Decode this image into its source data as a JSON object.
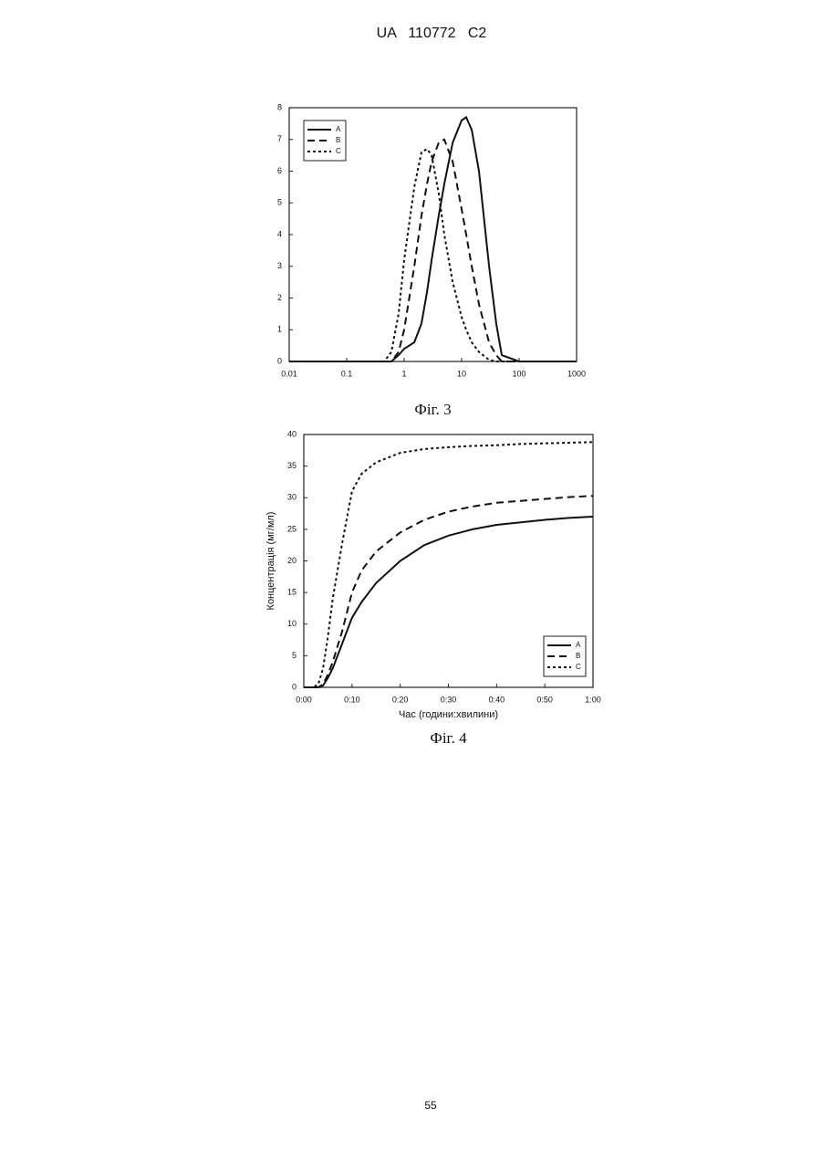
{
  "header": "UA   110772   C2",
  "page_number": "55",
  "chart_data": [
    {
      "type": "line",
      "caption": "Фіг. 3",
      "xscale": "log",
      "legend": "upper left",
      "xlim": [
        0.01,
        1000
      ],
      "xticks": [
        0.01,
        0.1,
        1,
        10,
        100,
        1000
      ],
      "ylim": [
        0,
        8
      ],
      "yticks": [
        0,
        1,
        2,
        3,
        4,
        5,
        6,
        7,
        8
      ],
      "x": [
        0.01,
        0.45,
        0.6,
        0.8,
        1,
        1.5,
        2,
        2.5,
        3,
        4,
        5,
        7,
        10,
        12,
        15,
        20,
        30,
        40,
        50,
        100,
        1000
      ],
      "series": [
        {
          "name": "A",
          "color": "#111111",
          "dash": "solid",
          "values": [
            0,
            0,
            0,
            0.2,
            0.4,
            0.6,
            1.2,
            2.2,
            3.2,
            4.6,
            5.6,
            6.9,
            7.6,
            7.7,
            7.3,
            6.0,
            3.0,
            1.2,
            0.2,
            0,
            0
          ]
        },
        {
          "name": "B",
          "color": "#111111",
          "dash": "dashed",
          "values": [
            0,
            0,
            0,
            0.3,
            1.0,
            3.0,
            4.6,
            5.6,
            6.3,
            6.9,
            7.0,
            6.3,
            4.8,
            4.0,
            3.0,
            1.8,
            0.6,
            0.2,
            0,
            0,
            0
          ]
        },
        {
          "name": "C",
          "color": "#111111",
          "dash": "dotted",
          "values": [
            0,
            0,
            0.3,
            1.5,
            3.2,
            5.5,
            6.6,
            6.7,
            6.5,
            5.3,
            4.0,
            2.5,
            1.4,
            1.0,
            0.6,
            0.3,
            0.05,
            0,
            0,
            0,
            0
          ]
        }
      ]
    },
    {
      "type": "line",
      "caption": "Фіг. 4",
      "legend": "lower right",
      "xlabel": "Час (години:хвилини)",
      "ylabel": "Концентрація (мг/мл)",
      "xlim": [
        0,
        60
      ],
      "xticks": [
        {
          "value": 0,
          "label": "0:00"
        },
        {
          "value": 10,
          "label": "0:10"
        },
        {
          "value": 20,
          "label": "0:20"
        },
        {
          "value": 30,
          "label": "0:30"
        },
        {
          "value": 40,
          "label": "0:40"
        },
        {
          "value": 50,
          "label": "0:50"
        },
        {
          "value": 60,
          "label": "1:00"
        }
      ],
      "ylim": [
        0,
        40
      ],
      "yticks": [
        0,
        5,
        10,
        15,
        20,
        25,
        30,
        35,
        40
      ],
      "x": [
        0,
        2,
        3,
        4,
        5,
        6,
        8,
        10,
        12,
        15,
        20,
        25,
        30,
        35,
        40,
        45,
        50,
        55,
        60
      ],
      "series": [
        {
          "name": "A",
          "color": "#111111",
          "dash": "solid",
          "values": [
            0,
            0,
            0,
            0.3,
            1.5,
            3,
            7,
            11,
            13.5,
            16.5,
            20,
            22.5,
            24,
            25,
            25.7,
            26.1,
            26.5,
            26.8,
            27
          ]
        },
        {
          "name": "B",
          "color": "#111111",
          "dash": "dashed",
          "values": [
            0,
            0,
            0,
            0.5,
            2,
            4,
            9,
            15,
            18.5,
            21.5,
            24.5,
            26.5,
            27.8,
            28.6,
            29.2,
            29.5,
            29.8,
            30.1,
            30.3
          ]
        },
        {
          "name": "C",
          "color": "#111111",
          "dash": "dotted",
          "values": [
            0,
            0,
            0.5,
            3,
            8,
            14,
            23,
            31,
            33.8,
            35.6,
            37.1,
            37.7,
            38.0,
            38.2,
            38.3,
            38.5,
            38.6,
            38.7,
            38.8
          ]
        }
      ]
    }
  ]
}
